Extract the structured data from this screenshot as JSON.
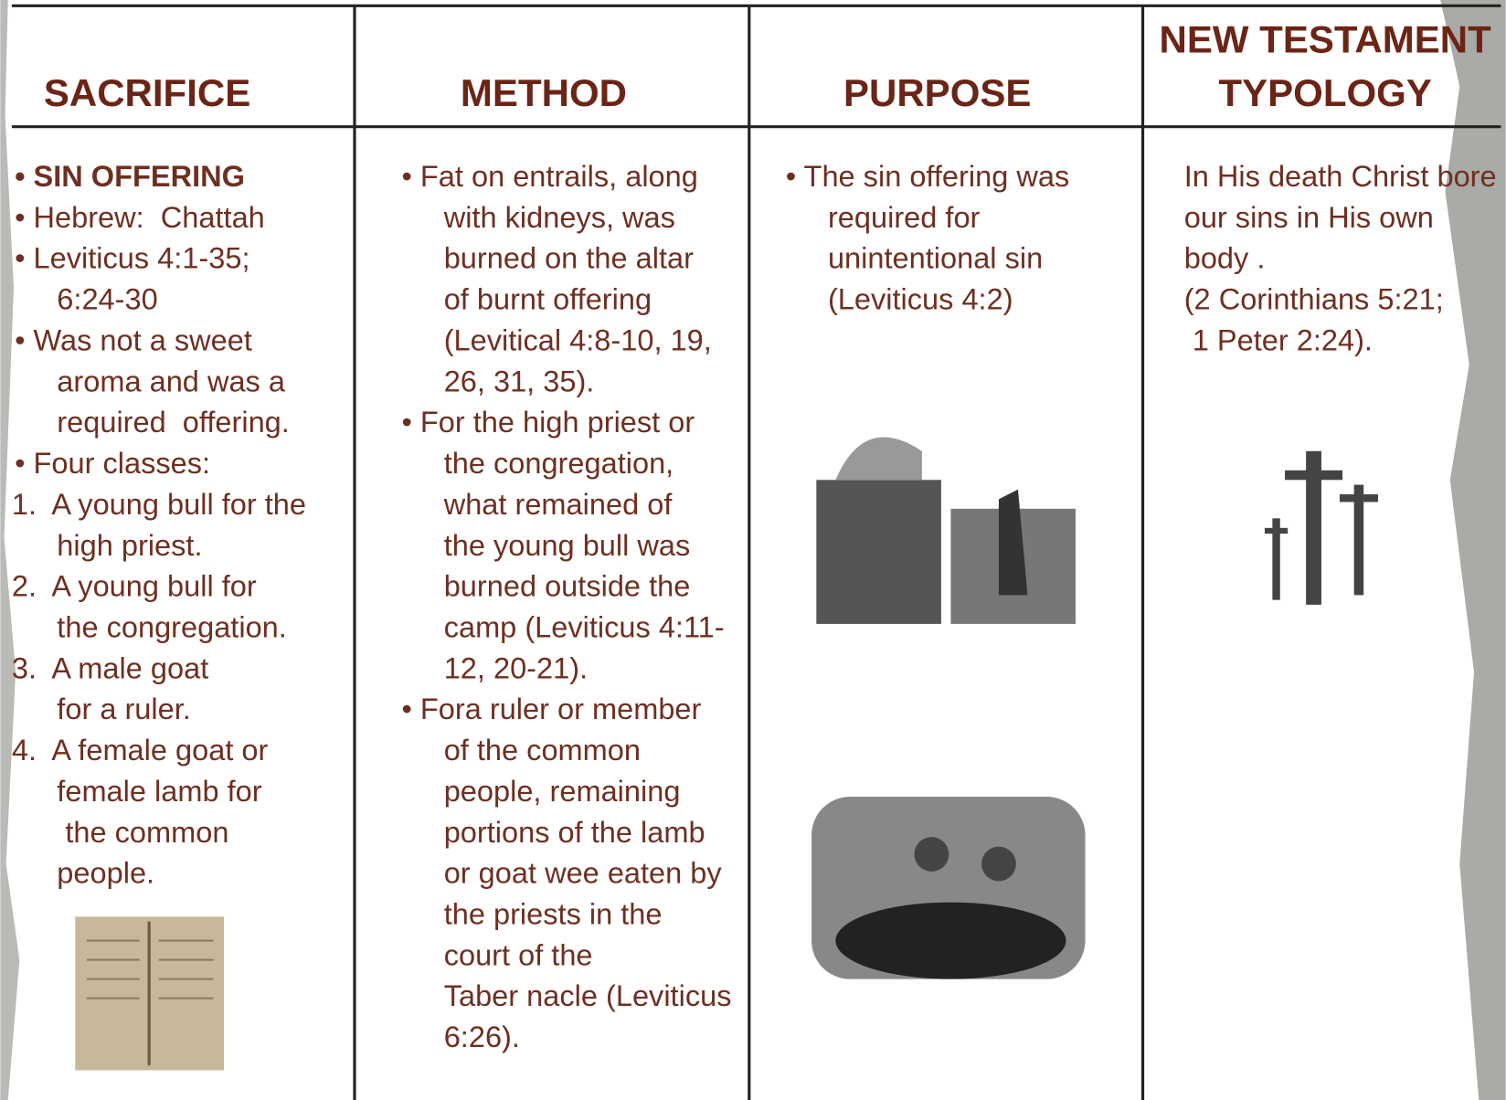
{
  "table": {
    "headers": [
      [
        "SACRIFICE"
      ],
      [
        "METHOD"
      ],
      [
        "PURPOSE"
      ],
      [
        "NEW TESTAMENT",
        "TYPOLOGY"
      ]
    ],
    "columns": [
      [
        "• SIN OFFERING",
        "• Hebrew:  Chattah",
        "• Leviticus 4:1-35;",
        "6:24-30",
        "• Was not a sweet",
        "aroma and was a",
        "required  offering.",
        "• Four classes:",
        "1.  A young bull for the",
        "high priest.",
        "2.  A young bull for",
        "the congregation.",
        "3.  A male goat",
        "for a ruler.",
        "4.  A female goat or",
        "female lamb for",
        " the common",
        "people."
      ],
      [
        "• Fat on entrails, along",
        "with kidneys, was",
        "burned on the altar",
        "of burnt offering",
        "(Levitical 4:8-10, 19,",
        "26, 31, 35).",
        "• For the high priest or",
        "the congregation,",
        "what remained of",
        "the young bull was",
        "burned outside the",
        "camp (Leviticus 4:11-",
        "12, 20-21).",
        "• Fora ruler or member",
        "of the common",
        "people, remaining",
        "portions of the lamb",
        "or goat wee eaten by",
        "the priests in the",
        "court of the",
        "Taber nacle (Leviticus",
        "6:26)."
      ],
      [
        "• The sin offering was",
        "required for",
        "unintentional sin",
        "(Leviticus 4:2)"
      ],
      [
        "In His death Christ bore",
        "our sins in His own",
        "body .",
        "(2 Corinthians 5:21;",
        " 1 Peter 2:24)."
      ]
    ]
  }
}
